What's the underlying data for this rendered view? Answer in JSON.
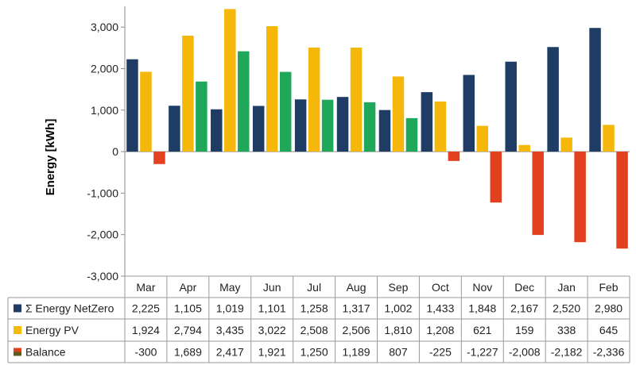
{
  "chart_data": {
    "type": "bar",
    "ylabel": "Energy [kWh]",
    "xlabel": "",
    "title": "",
    "ylim": [
      -3000,
      3500
    ],
    "yticks": [
      -3000,
      -2000,
      -1000,
      0,
      1000,
      2000,
      3000
    ],
    "ytick_labels": [
      "-3,000",
      "-2,000",
      "-1,000",
      "0",
      "1,000",
      "2,000",
      "3,000"
    ],
    "grid": false,
    "legend": "data-table-left",
    "categories": [
      "Mar",
      "Apr",
      "May",
      "Jun",
      "Jul",
      "Aug",
      "Sep",
      "Oct",
      "Nov",
      "Dec",
      "Jan",
      "Feb"
    ],
    "series": [
      {
        "name": "Σ Energy NetZero",
        "color": "#1f3d64",
        "values": [
          2225,
          1105,
          1019,
          1101,
          1258,
          1317,
          1002,
          1433,
          1848,
          2167,
          2520,
          2980
        ],
        "labels": [
          "2,225",
          "1,105",
          "1,019",
          "1,101",
          "1,258",
          "1,317",
          "1,002",
          "1,433",
          "1,848",
          "2,167",
          "2,520",
          "2,980"
        ]
      },
      {
        "name": "Energy PV",
        "color": "#f5b70a",
        "values": [
          1924,
          2794,
          3435,
          3022,
          2508,
          2506,
          1810,
          1208,
          621,
          159,
          338,
          645
        ],
        "labels": [
          "1,924",
          "2,794",
          "3,435",
          "3,022",
          "2,508",
          "2,506",
          "1,810",
          "1,208",
          "621",
          "159",
          "338",
          "645"
        ]
      },
      {
        "name": "Balance",
        "color_positive": "#1fa85a",
        "color_negative": "#e2401e",
        "legend_colors": [
          "#e2401e",
          "#5c5c1c"
        ],
        "values": [
          -300,
          1689,
          2417,
          1921,
          1250,
          1189,
          807,
          -225,
          -1227,
          -2008,
          -2182,
          -2336
        ],
        "labels": [
          "-300",
          "1,689",
          "2,417",
          "1,921",
          "1,250",
          "1,189",
          "807",
          "-225",
          "-1,227",
          "-2,008",
          "-2,182",
          "-2,336"
        ]
      }
    ]
  }
}
